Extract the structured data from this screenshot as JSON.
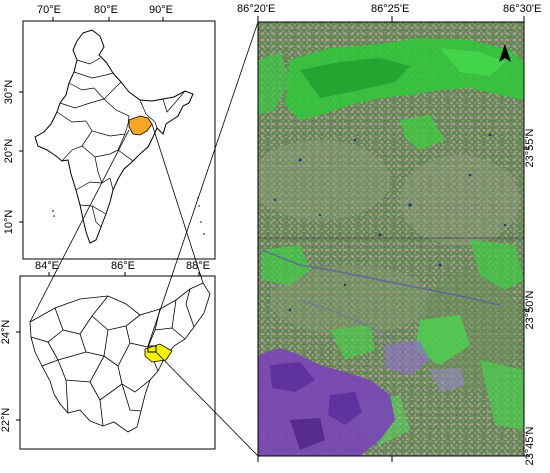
{
  "top_map": {
    "lon_labels": [
      "70°E",
      "80°E",
      "90°E"
    ],
    "lat_labels": [
      "30°N",
      "20°N",
      "10°N"
    ]
  },
  "bottom_map": {
    "lon_labels": [
      "84°E",
      "86°E",
      "88°E"
    ],
    "lat_labels": [
      "24°N",
      "22°N"
    ]
  },
  "satellite_map": {
    "lon_labels": [
      "86°20'E",
      "86°25'E",
      "86°30'E"
    ],
    "lat_labels": [
      "23°55'N",
      "23°50'N",
      "23°45'N"
    ]
  },
  "colors": {
    "india_fill": "#ffffff",
    "jharkhand_highlight": "#f5a623",
    "study_area": "#f7f000",
    "vegetation": "#3cd23c",
    "urban": "#7a44b8"
  }
}
